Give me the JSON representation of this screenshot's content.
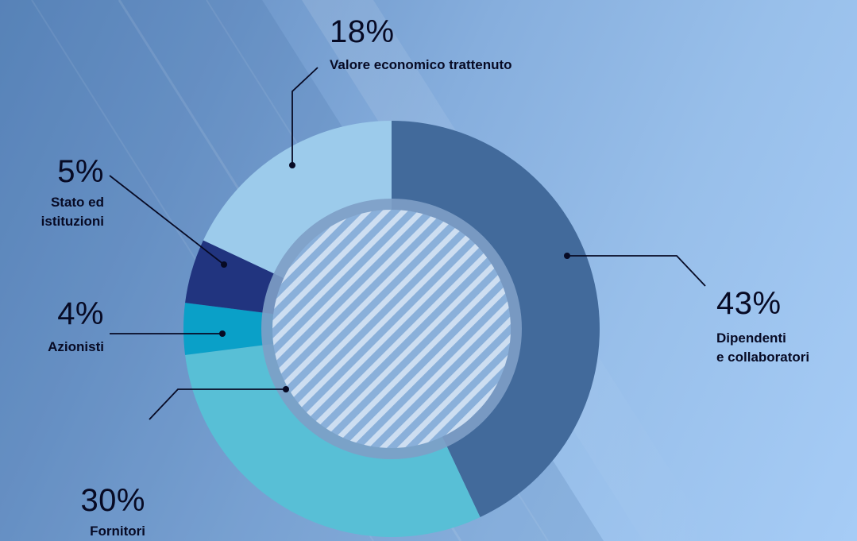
{
  "chart_data": {
    "type": "pie",
    "variant": "donut",
    "slices": [
      {
        "key": "dip",
        "value": 43,
        "label": "43%",
        "name_lines": [
          "Dipendenti",
          "e collaboratori"
        ],
        "color": "#426a9b"
      },
      {
        "key": "forn",
        "value": 30,
        "label": "30%",
        "name_lines": [
          "Fornitori"
        ],
        "color": "#58bfd6"
      },
      {
        "key": "az",
        "value": 4,
        "label": "4%",
        "name_lines": [
          "Azionisti"
        ],
        "color": "#0aa0c8"
      },
      {
        "key": "stato",
        "value": 5,
        "label": "5%",
        "name_lines": [
          "Stato ed",
          "istituzioni"
        ],
        "color": "#21347f"
      },
      {
        "key": "val",
        "value": 18,
        "label": "18%",
        "name_lines": [
          "Valore economico trattenuto"
        ],
        "color": "#9ccbeb"
      }
    ],
    "center_fill": "hatched",
    "legend": "none"
  }
}
